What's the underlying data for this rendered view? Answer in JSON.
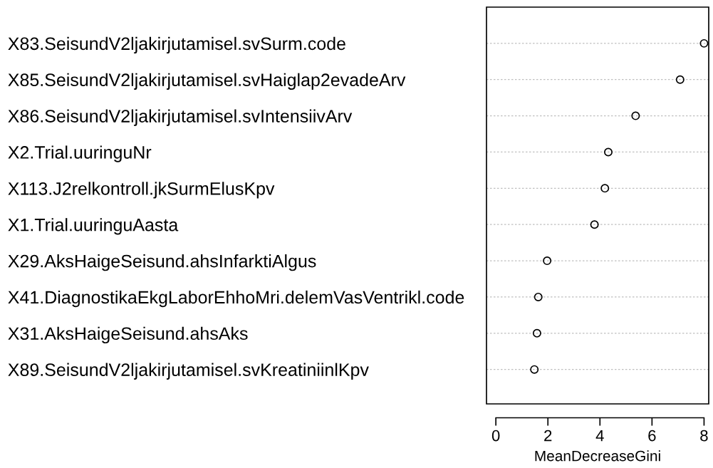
{
  "chart_data": {
    "type": "scatter",
    "orientation": "horizontal",
    "xlabel": "MeanDecreaseGini",
    "categories": [
      "X83.SeisundV2ljakirjutamisel.svSurm.code",
      "X85.SeisundV2ljakirjutamisel.svHaiglap2evadeArv",
      "X86.SeisundV2ljakirjutamisel.svIntensiivArv",
      "X2.Trial.uuringuNr",
      "X113.J2relkontroll.jkSurmElusKpv",
      "X1.Trial.uuringuAasta",
      "X29.AksHaigeSeisund.ahsInfarktiAlgus",
      "X41.DiagnostikaEkgLaborEhhoMri.delemVasVentrikl.code",
      "X31.AksHaigeSeisund.ahsAks",
      "X89.SeisundV2ljakirjutamisel.svKreatiniinlKpv"
    ],
    "series": [
      {
        "color": "#000000",
        "values": [
          8.0,
          7.08,
          5.37,
          4.32,
          4.19,
          3.79,
          1.97,
          1.63,
          1.58,
          1.48
        ]
      }
    ],
    "xlim": [
      -0.36,
      8.18
    ],
    "xticks": [
      0,
      2,
      4,
      6,
      8
    ],
    "grid": "y",
    "marker": "circle",
    "legend": false
  }
}
